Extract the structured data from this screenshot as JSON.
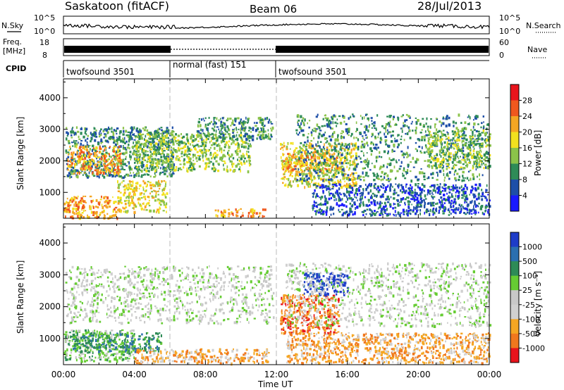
{
  "header": {
    "station": "Saskatoon (fitACF)",
    "beam": "Beam 06",
    "date": "28/Jul/2013"
  },
  "strips": {
    "nsky_label": "N.Sky",
    "nsky_ticks": [
      "10^5",
      "10^0"
    ],
    "nsearch_label": "N.Search",
    "nsearch_ticks": [
      "10^5",
      "10^0"
    ],
    "freq_label_1": "Freq.",
    "freq_label_2": "[MHz]",
    "freq_ticks": [
      "18",
      "8"
    ],
    "nave_label": "Nave",
    "nave_ticks": [
      "60",
      "0"
    ],
    "cpid_label": "CPID",
    "cpid_segments": [
      {
        "label": "twofsound 3501",
        "start_hour": 0,
        "end_hour": 6
      },
      {
        "label": "normal (fast) 151",
        "start_hour": 6,
        "end_hour": 12
      },
      {
        "label": "twofsound 3501",
        "start_hour": 12,
        "end_hour": 24
      }
    ]
  },
  "chart_data": [
    {
      "type": "heatmap",
      "ylabel": "Slant Range [km]",
      "xlabel": "Time UT",
      "xlim": [
        0,
        24
      ],
      "ylim": [
        180,
        4600
      ],
      "xticks": [
        "00:00",
        "04:00",
        "08:00",
        "12:00",
        "16:00",
        "20:00",
        "00:00"
      ],
      "yticks": [
        1000,
        2000,
        3000,
        4000
      ],
      "colorbar": {
        "label": "Power [dB]",
        "ticks": [
          "28",
          "24",
          "20",
          "16",
          "12",
          "8",
          "4"
        ],
        "colors": [
          "#e8141c",
          "#f0581e",
          "#f5a623",
          "#f2e11e",
          "#8bc34a",
          "#2e8b57",
          "#1e4fa8",
          "#1a1aff"
        ]
      },
      "regions": [
        {
          "t0": 0.1,
          "t1": 6.2,
          "r0": 1500,
          "r1": 3100,
          "level": 5
        },
        {
          "t0": 0.2,
          "t1": 3.2,
          "r0": 1600,
          "r1": 2500,
          "level": 2
        },
        {
          "t0": 0.0,
          "t1": 3.0,
          "r0": 200,
          "r1": 900,
          "level": 2
        },
        {
          "t0": 3.0,
          "t1": 5.8,
          "r0": 400,
          "r1": 1400,
          "level": 3
        },
        {
          "t0": 4.0,
          "t1": 10.5,
          "r0": 1700,
          "r1": 2900,
          "level": 4
        },
        {
          "t0": 7.5,
          "t1": 11.8,
          "r0": 2700,
          "r1": 3400,
          "level": 5
        },
        {
          "t0": 8.5,
          "t1": 11.5,
          "r0": 250,
          "r1": 500,
          "level": 2
        },
        {
          "t0": 12.2,
          "t1": 16.5,
          "r0": 1200,
          "r1": 2600,
          "level": 3
        },
        {
          "t0": 12.2,
          "t1": 15.5,
          "r0": 1700,
          "r1": 2300,
          "level": 2
        },
        {
          "t0": 13.0,
          "t1": 24.0,
          "r0": 1400,
          "r1": 3500,
          "level": 5
        },
        {
          "t0": 14.0,
          "t1": 24.0,
          "r0": 300,
          "r1": 1300,
          "level": 6
        },
        {
          "t0": 20.5,
          "t1": 24.0,
          "r0": 1800,
          "r1": 3000,
          "level": 4
        }
      ]
    },
    {
      "type": "heatmap",
      "ylabel": "Slant Range [km]",
      "xlabel": "Time UT",
      "xlim": [
        0,
        24
      ],
      "ylim": [
        180,
        4600
      ],
      "xticks": [
        "00:00",
        "04:00",
        "08:00",
        "12:00",
        "16:00",
        "20:00",
        "00:00"
      ],
      "yticks": [
        1000,
        2000,
        3000,
        4000
      ],
      "colorbar": {
        "label": "Velocity [m s⁻¹]",
        "ticks": [
          "1000",
          "500",
          "100",
          "25",
          "-25",
          "-100",
          "-500",
          "-1000"
        ],
        "colors": [
          "#1e3cc8",
          "#2b6fb0",
          "#2e8b57",
          "#66cc33",
          "#c8c8c8",
          "#d0d0d0",
          "#f5a623",
          "#f0781e",
          "#e8141c"
        ]
      },
      "regions": [
        {
          "t0": 0.1,
          "t1": 11.8,
          "r0": 1500,
          "r1": 3300,
          "level": 4
        },
        {
          "t0": 0.0,
          "t1": 4.0,
          "r0": 300,
          "r1": 1300,
          "level": 3
        },
        {
          "t0": 0.5,
          "t1": 5.5,
          "r0": 600,
          "r1": 1200,
          "level": 2
        },
        {
          "t0": 4.0,
          "t1": 11.5,
          "r0": 250,
          "r1": 700,
          "level": 6
        },
        {
          "t0": 12.2,
          "t1": 15.5,
          "r0": 1200,
          "r1": 2400,
          "level": 7
        },
        {
          "t0": 13.5,
          "t1": 16.0,
          "r0": 2400,
          "r1": 3100,
          "level": 0
        },
        {
          "t0": 12.5,
          "t1": 24.0,
          "r0": 1400,
          "r1": 3400,
          "level": 4
        },
        {
          "t0": 12.5,
          "t1": 24.0,
          "r0": 250,
          "r1": 1200,
          "level": 6
        }
      ]
    }
  ]
}
